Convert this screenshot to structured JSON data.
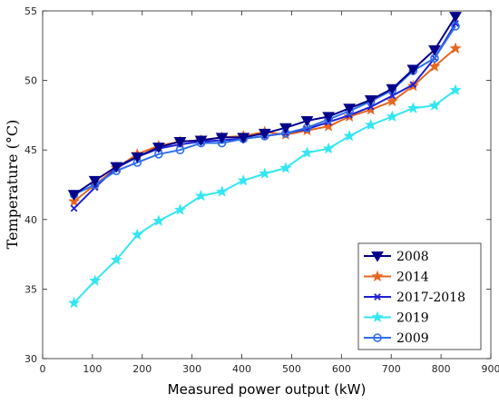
{
  "chart_data": {
    "type": "line",
    "xlabel": "Measured power output (kW)",
    "ylabel": "Temperature (°C)",
    "xlim": [
      0,
      900
    ],
    "ylim": [
      30,
      55
    ],
    "x_ticks": [
      0,
      100,
      200,
      300,
      400,
      500,
      600,
      700,
      800,
      900
    ],
    "y_ticks": [
      30,
      35,
      40,
      45,
      50,
      55
    ],
    "grid": false,
    "legend_position": "bottom-right",
    "series": [
      {
        "name": "2008",
        "color": "#00008B",
        "marker": "triangle-down",
        "x": [
          63,
          105,
          148,
          190,
          233,
          276,
          318,
          360,
          403,
          446,
          488,
          531,
          574,
          616,
          659,
          702,
          744,
          787,
          829
        ],
        "y": [
          41.8,
          42.8,
          43.8,
          44.5,
          45.2,
          45.6,
          45.7,
          45.9,
          45.9,
          46.2,
          46.6,
          47.1,
          47.4,
          48.0,
          48.6,
          49.4,
          50.8,
          52.2,
          54.6
        ]
      },
      {
        "name": "2014",
        "color": "#E8661F",
        "marker": "star",
        "x": [
          63,
          105,
          148,
          190,
          233,
          276,
          318,
          360,
          403,
          446,
          488,
          531,
          574,
          616,
          659,
          702,
          744,
          787,
          829
        ],
        "y": [
          41.3,
          42.5,
          43.7,
          44.7,
          45.3,
          45.6,
          45.7,
          45.9,
          46.0,
          46.3,
          46.1,
          46.4,
          46.7,
          47.4,
          47.9,
          48.5,
          49.6,
          51.0,
          52.3
        ]
      },
      {
        "name": "2017-2018",
        "color": "#1F1FD6",
        "marker": "x",
        "x": [
          63,
          105,
          148,
          190,
          233,
          276,
          318,
          360,
          403,
          446,
          488,
          531,
          574,
          616,
          659,
          702,
          744,
          787,
          829
        ],
        "y": [
          40.8,
          42.3,
          43.7,
          44.5,
          45.1,
          45.4,
          45.6,
          45.7,
          45.8,
          46.0,
          46.2,
          46.5,
          47.0,
          47.5,
          48.1,
          48.9,
          49.7,
          51.6,
          54.1
        ]
      },
      {
        "name": "2019",
        "color": "#33E6F2",
        "marker": "star",
        "x": [
          63,
          105,
          148,
          190,
          233,
          276,
          318,
          360,
          403,
          446,
          488,
          531,
          574,
          616,
          659,
          702,
          744,
          787,
          829
        ],
        "y": [
          34.0,
          35.6,
          37.1,
          38.9,
          39.9,
          40.7,
          41.7,
          42.0,
          42.8,
          43.3,
          43.7,
          44.8,
          45.1,
          46.0,
          46.8,
          47.4,
          48.0,
          48.2,
          49.3
        ]
      },
      {
        "name": "2009",
        "color": "#2F6FE6",
        "marker": "circle",
        "x": [
          63,
          105,
          148,
          190,
          233,
          276,
          318,
          360,
          403,
          446,
          488,
          531,
          574,
          616,
          659,
          702,
          744,
          787,
          829
        ],
        "y": [
          41.8,
          42.5,
          43.5,
          44.1,
          44.7,
          45.0,
          45.5,
          45.5,
          45.8,
          46.0,
          46.2,
          46.6,
          47.2,
          47.8,
          48.5,
          49.3,
          50.7,
          51.6,
          53.9
        ]
      }
    ]
  }
}
